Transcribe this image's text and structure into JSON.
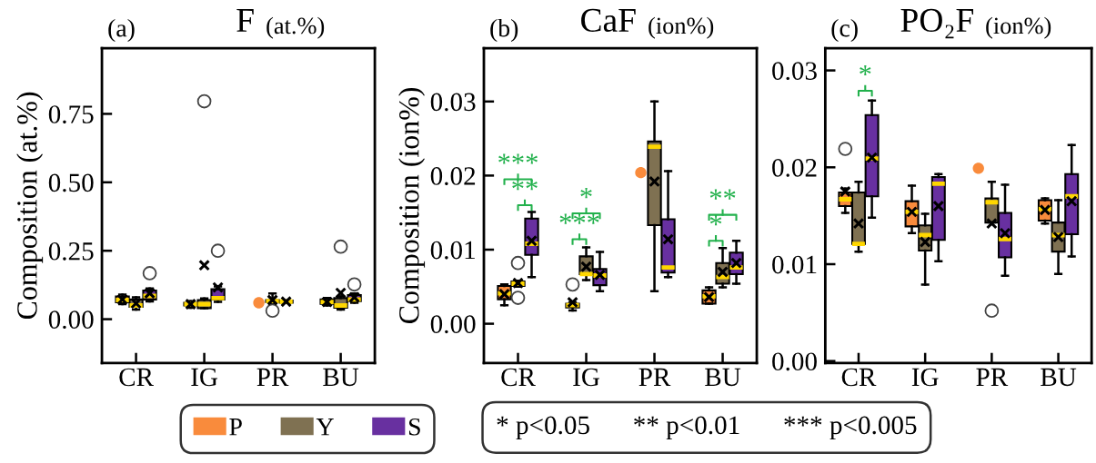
{
  "chart_data": [
    {
      "type": "box",
      "title": "F",
      "subtitle": "(at.%)",
      "ylabel": "Composition (at.%)",
      "categories": [
        "CR",
        "IG",
        "PR",
        "BU"
      ],
      "ylim": [
        -0.16,
        0.99
      ],
      "yticks": [
        {
          "value": 0,
          "label": "0.00"
        },
        0.25,
        {
          "value": 0.5,
          "label": "0.50"
        },
        0.75
      ],
      "grid": false,
      "legend": "bottom",
      "annotations": [
        "(a)"
      ],
      "series": [
        {
          "name": "P",
          "color": "#f98b3c",
          "boxes": [
            {
              "low": 0.055,
              "q1": 0.062,
              "median": 0.07,
              "q3": 0.083,
              "high": 0.09,
              "mean": 0.072
            },
            {
              "low": 0.042,
              "q1": 0.05,
              "median": 0.055,
              "q3": 0.06,
              "high": 0.066,
              "mean": 0.055
            },
            null,
            {
              "low": 0.05,
              "q1": 0.056,
              "median": 0.063,
              "q3": 0.072,
              "high": 0.077,
              "mean": 0.063
            }
          ]
        },
        {
          "name": "Y",
          "color": "#7f7152",
          "boxes": [
            {
              "low": 0.035,
              "q1": 0.045,
              "median": 0.05,
              "q3": 0.072,
              "high": 0.08,
              "mean": 0.058
            },
            {
              "low": 0.04,
              "q1": 0.04,
              "median": 0.055,
              "q3": 0.07,
              "high": 0.076,
              "mean": 0.197,
              "outliers": [
                0.796
              ]
            },
            {
              "low": 0.058,
              "q1": 0.063,
              "median": 0.066,
              "q3": 0.07,
              "high": 0.094,
              "mean": 0.07,
              "outliers": [
                0.031
              ]
            },
            {
              "low": 0.035,
              "q1": 0.042,
              "median": 0.05,
              "q3": 0.077,
              "high": 0.083,
              "mean": 0.096,
              "outliers": [
                0.265
              ]
            }
          ]
        },
        {
          "name": "S",
          "color": "#6830a0",
          "boxes": [
            {
              "low": 0.065,
              "q1": 0.072,
              "median": 0.085,
              "q3": 0.105,
              "high": 0.112,
              "mean": 0.095,
              "outliers": [
                0.168
              ]
            },
            {
              "low": 0.063,
              "q1": 0.072,
              "median": 0.077,
              "q3": 0.11,
              "high": 0.12,
              "mean": 0.116,
              "outliers": [
                0.25
              ]
            },
            {
              "low": 0.06,
              "q1": 0.06,
              "median": 0.064,
              "q3": 0.068,
              "high": 0.068,
              "mean": 0.064
            },
            {
              "low": 0.06,
              "q1": 0.066,
              "median": 0.072,
              "q3": 0.088,
              "high": 0.094,
              "mean": 0.08,
              "outliers": [
                0.127
              ]
            }
          ]
        },
        {
          "type": "scatter",
          "color": "#f98b3c",
          "values": [
            null,
            null,
            0.06,
            null
          ]
        }
      ]
    },
    {
      "type": "box",
      "title": "CaF",
      "subtitle": "(ion%)",
      "ylabel": "Composition (ion%)",
      "categories": [
        "CR",
        "IG",
        "PR",
        "BU"
      ],
      "ylim": [
        -0.0053,
        0.0372
      ],
      "yticks": [
        {
          "value": 0,
          "label": "0.00"
        },
        {
          "value": 0.01,
          "label": "0.01"
        },
        {
          "value": 0.02,
          "label": "0.02"
        },
        {
          "value": 0.03,
          "label": "0.03"
        }
      ],
      "grid": false,
      "annotations": [
        "(b)",
        "* p<0.05",
        "** p<0.01",
        "*** p<0.005",
        "***",
        "**",
        "*",
        "***",
        "**",
        "*"
      ],
      "series": [
        {
          "name": "P",
          "color": "#f98b3c",
          "boxes": [
            {
              "low": 0.0025,
              "q1": 0.0033,
              "median": 0.0041,
              "q3": 0.0051,
              "high": 0.0053,
              "mean": 0.004
            },
            {
              "low": 0.0018,
              "q1": 0.0022,
              "median": 0.0025,
              "q3": 0.0027,
              "high": 0.0029,
              "mean": 0.0029,
              "outliers": [
                0.0053
              ]
            },
            null,
            {
              "low": 0.0027,
              "q1": 0.0027,
              "median": 0.0037,
              "q3": 0.0045,
              "high": 0.0049,
              "mean": 0.0036
            }
          ]
        },
        {
          "name": "Y",
          "color": "#7f7152",
          "boxes": [
            {
              "low": 0.005,
              "q1": 0.0051,
              "median": 0.0054,
              "q3": 0.0057,
              "high": 0.0058,
              "mean": 0.0055,
              "outliers": [
                0.0082,
                0.0035
              ]
            },
            {
              "low": 0.0059,
              "q1": 0.0067,
              "median": 0.0067,
              "q3": 0.0091,
              "high": 0.0103,
              "mean": 0.0077
            },
            {
              "low": 0.0044,
              "q1": 0.0133,
              "median": 0.0239,
              "q3": 0.0246,
              "high": 0.03,
              "mean": 0.0192
            },
            {
              "low": 0.0049,
              "q1": 0.0054,
              "median": 0.0063,
              "q3": 0.0082,
              "high": 0.0102,
              "mean": 0.007
            }
          ]
        },
        {
          "name": "S",
          "color": "#6830a0",
          "boxes": [
            {
              "low": 0.0063,
              "q1": 0.0093,
              "median": 0.0108,
              "q3": 0.0142,
              "high": 0.0151,
              "mean": 0.0112
            },
            {
              "low": 0.0044,
              "q1": 0.0052,
              "median": 0.0065,
              "q3": 0.0074,
              "high": 0.0097,
              "mean": 0.0066
            },
            {
              "low": 0.0063,
              "q1": 0.0069,
              "median": 0.0076,
              "q3": 0.0141,
              "high": 0.0206,
              "mean": 0.0114
            },
            {
              "low": 0.0054,
              "q1": 0.0067,
              "median": 0.0076,
              "q3": 0.0096,
              "high": 0.0112,
              "mean": 0.0082
            }
          ]
        },
        {
          "type": "scatter",
          "color": "#f98b3c",
          "values": [
            null,
            null,
            0.0204,
            null
          ]
        }
      ]
    },
    {
      "type": "box",
      "title": "PO₂F",
      "subtitle": "(ion%)",
      "categories": [
        "CR",
        "IG",
        "PR",
        "BU"
      ],
      "ylim": [
        -0.0002,
        0.0323
      ],
      "yticks": [
        {
          "value": 0,
          "label": "0.00"
        },
        {
          "value": 0.01,
          "label": "0.01"
        },
        {
          "value": 0.02,
          "label": "0.02"
        },
        {
          "value": 0.03,
          "label": "0.03"
        }
      ],
      "grid": false,
      "annotations": [
        "(c)",
        "*"
      ],
      "series": [
        {
          "name": "P",
          "color": "#f98b3c",
          "boxes": [
            {
              "low": 0.0153,
              "q1": 0.016,
              "median": 0.0167,
              "q3": 0.0174,
              "high": 0.0178,
              "mean": 0.0175,
              "outliers": [
                0.0219
              ]
            },
            {
              "low": 0.0132,
              "q1": 0.0139,
              "median": 0.0154,
              "q3": 0.0165,
              "high": 0.0181,
              "mean": 0.0154
            },
            null,
            {
              "low": 0.0142,
              "q1": 0.0145,
              "median": 0.0157,
              "q3": 0.0166,
              "high": 0.0168,
              "mean": 0.0156
            }
          ]
        },
        {
          "name": "Y",
          "color": "#7f7152",
          "boxes": [
            {
              "low": 0.0113,
              "q1": 0.0121,
              "median": 0.0121,
              "q3": 0.0174,
              "high": 0.0185,
              "mean": 0.0142
            },
            {
              "low": 0.0079,
              "q1": 0.0114,
              "median": 0.013,
              "q3": 0.014,
              "high": 0.0152,
              "mean": 0.0123
            },
            {
              "low": 0.0143,
              "q1": 0.0143,
              "median": 0.0164,
              "q3": 0.0168,
              "high": 0.0185,
              "mean": 0.0142,
              "outliers": [
                0.0052
              ]
            },
            {
              "low": 0.009,
              "q1": 0.0113,
              "median": 0.013,
              "q3": 0.0143,
              "high": 0.0166,
              "mean": 0.0128
            }
          ]
        },
        {
          "name": "S",
          "color": "#6830a0",
          "boxes": [
            {
              "low": 0.0148,
              "q1": 0.017,
              "median": 0.0209,
              "q3": 0.0254,
              "high": 0.0269,
              "mean": 0.021
            },
            {
              "low": 0.0103,
              "q1": 0.0125,
              "median": 0.0183,
              "q3": 0.019,
              "high": 0.0193,
              "mean": 0.016
            },
            {
              "low": 0.0088,
              "q1": 0.0107,
              "median": 0.0126,
              "q3": 0.0153,
              "high": 0.0182,
              "mean": 0.0132
            },
            {
              "low": 0.0108,
              "q1": 0.0131,
              "median": 0.017,
              "q3": 0.0193,
              "high": 0.0223,
              "mean": 0.0165
            }
          ]
        },
        {
          "type": "scatter",
          "color": "#f98b3c",
          "values": [
            null,
            null,
            0.0199,
            null
          ]
        }
      ]
    }
  ]
}
